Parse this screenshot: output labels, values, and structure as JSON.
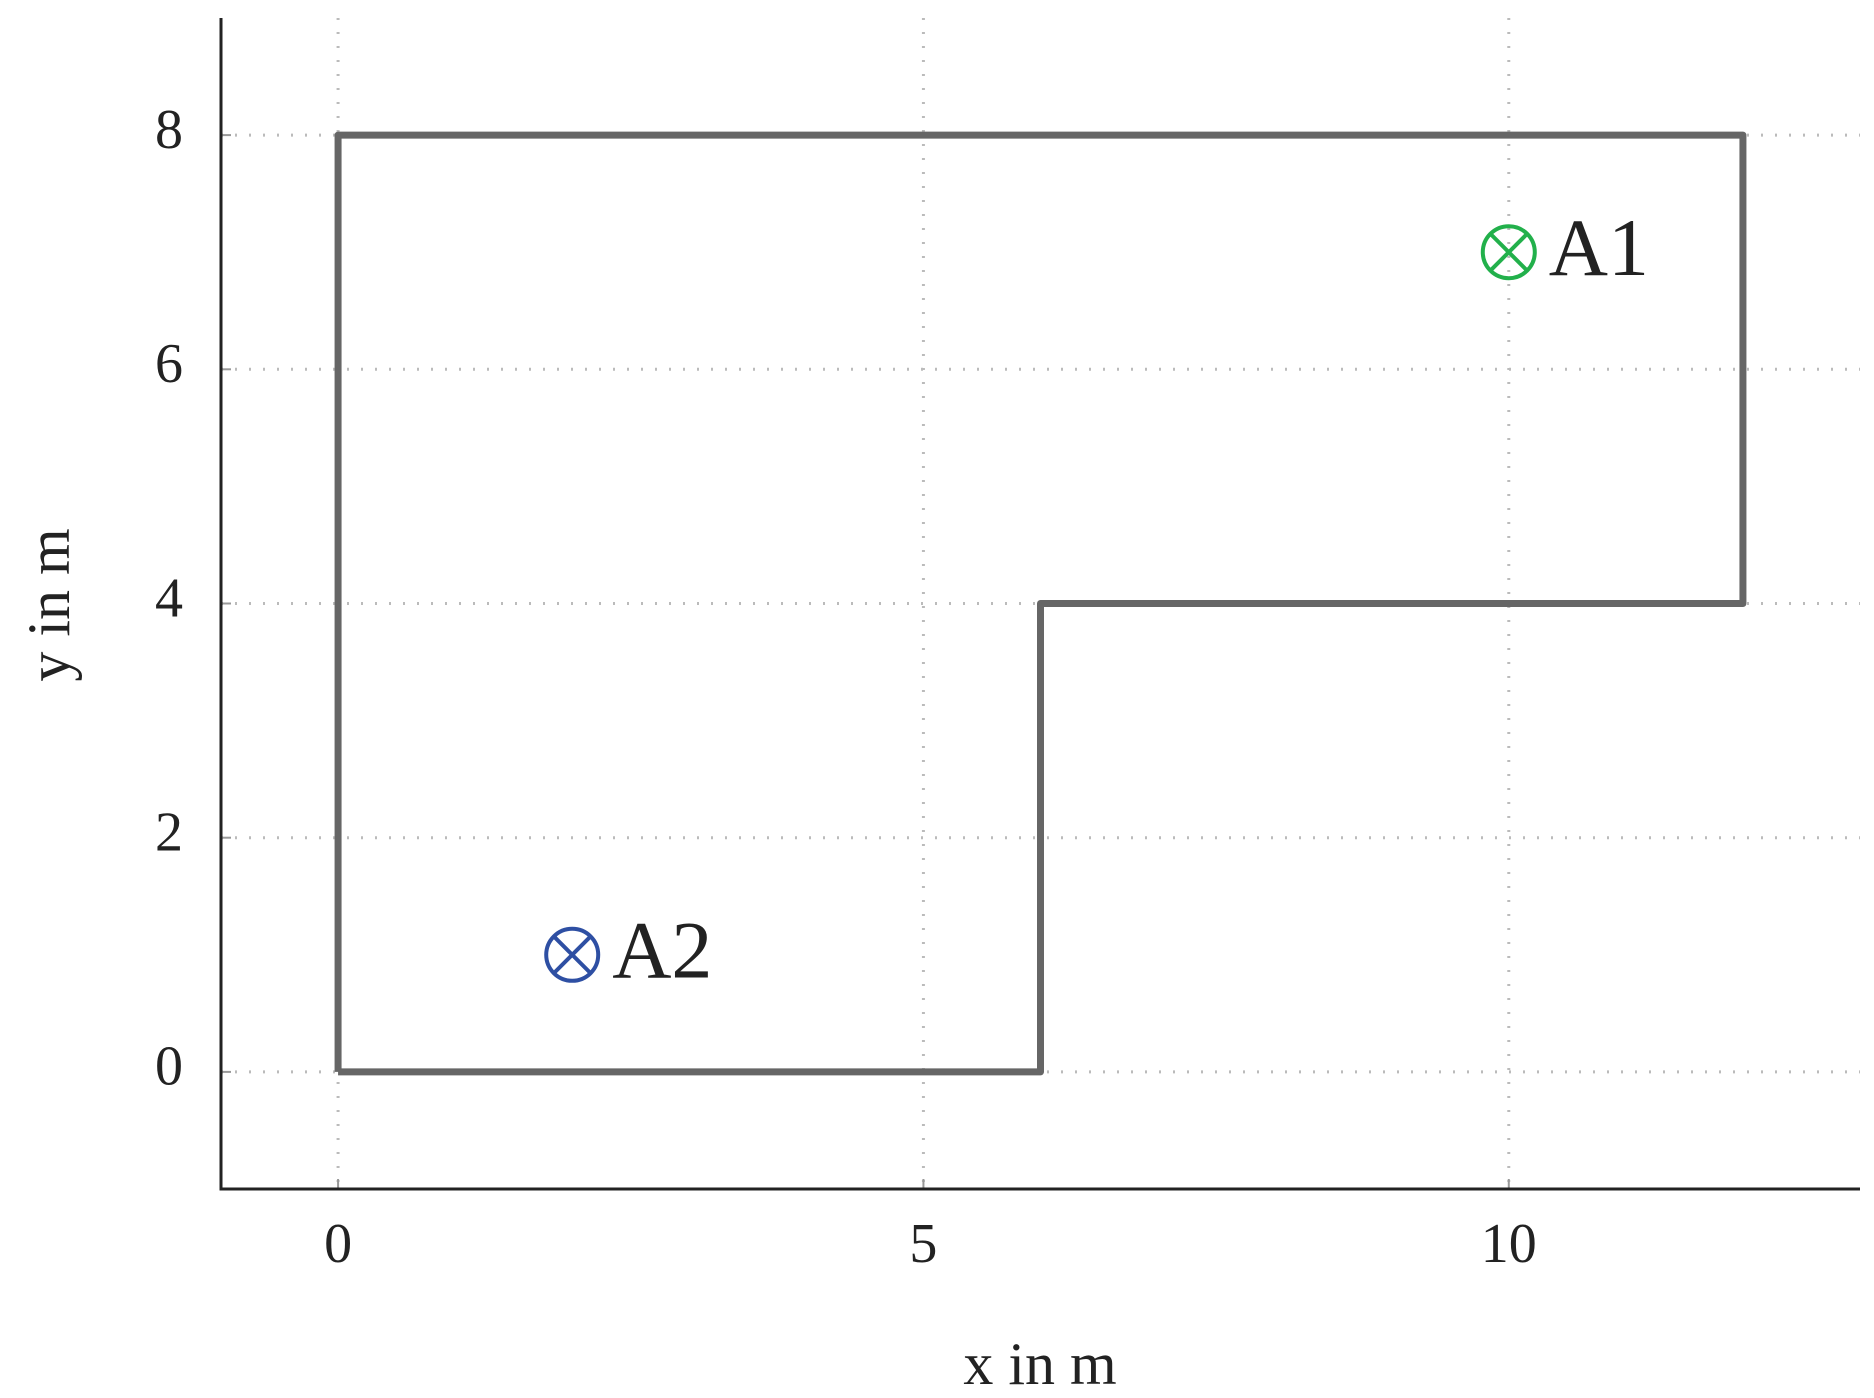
{
  "chart_data": {
    "type": "line",
    "xlabel": "x in m",
    "ylabel": "y in m",
    "xlim": [
      -1,
      13
    ],
    "ylim": [
      -1,
      9
    ],
    "xticks": [
      0,
      5,
      10
    ],
    "yticks": [
      0,
      2,
      4,
      6,
      8
    ],
    "grid": true,
    "series": [
      {
        "color": "#666666",
        "mode": "line",
        "x": [
          0,
          6,
          6,
          12,
          12,
          0,
          0
        ],
        "y": [
          0,
          0,
          4,
          4,
          8,
          8,
          0
        ]
      },
      {
        "name": "A1",
        "color": "#22b04b",
        "mode": "marker",
        "x": [
          10
        ],
        "y": [
          7
        ]
      },
      {
        "name": "A2",
        "color": "#2e4fa3",
        "mode": "marker",
        "x": [
          2
        ],
        "y": [
          1
        ]
      }
    ]
  }
}
